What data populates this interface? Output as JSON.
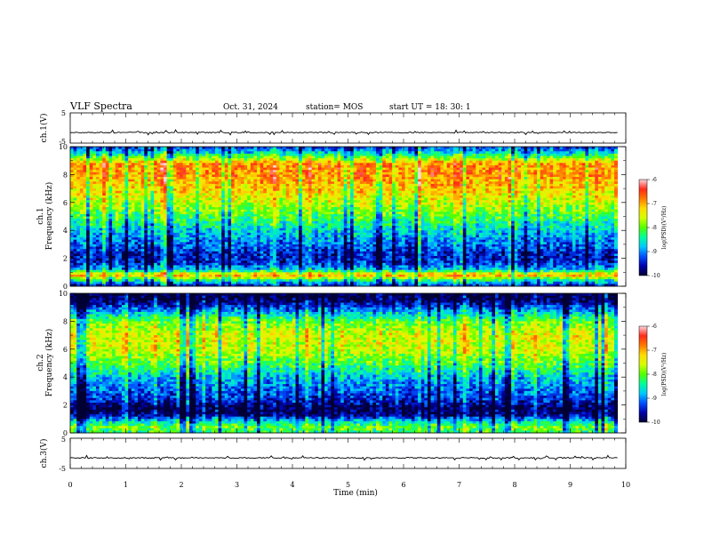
{
  "header": {
    "title": "VLF Spectra",
    "date": "Oct. 31, 2024",
    "station": "station= MOS",
    "start_ut": "start  UT =   18: 30: 1"
  },
  "chart_data": [
    {
      "type": "line",
      "panel": "ch1-waveform",
      "ylabel": "ch.1(V)",
      "yticks": [
        {
          "v": 5,
          "label": "5"
        },
        {
          "v": -5,
          "label": "-5"
        }
      ],
      "ylim": [
        -5,
        5
      ],
      "baseline": -1.5,
      "xlim": [
        0,
        9.85
      ]
    },
    {
      "type": "heatmap",
      "panel": "ch1-spectrogram",
      "ylabel_line1": "ch.1",
      "ylabel_line2": "Frequency (kHz)",
      "ylim": [
        0,
        10
      ],
      "yticks": [
        {
          "v": 0,
          "label": "0"
        },
        {
          "v": 2,
          "label": "2"
        },
        {
          "v": 4,
          "label": "4"
        },
        {
          "v": 6,
          "label": "6"
        },
        {
          "v": 8,
          "label": "8"
        },
        {
          "v": 10,
          "label": "10"
        }
      ],
      "xlim": [
        0,
        9.85
      ],
      "colorbar": {
        "label": "log(PSD)(V²/Hz)",
        "range": [
          -10,
          -6
        ],
        "ticks": [
          {
            "v": -6,
            "label": "-6"
          },
          {
            "v": -7,
            "label": "-7"
          },
          {
            "v": -8,
            "label": "-8"
          },
          {
            "v": -9,
            "label": "-9"
          },
          {
            "v": -10,
            "label": "-10"
          }
        ],
        "colormap": [
          "#000033",
          "#0000aa",
          "#0050ff",
          "#00c8ff",
          "#00ff9c",
          "#52ff00",
          "#d4ff00",
          "#ffdc00",
          "#ff7a00",
          "#ff2a1a",
          "#ffd6dd"
        ]
      },
      "profile": [
        {
          "f": 0.0,
          "v": -9.5
        },
        {
          "f": 0.4,
          "v": -8.5
        },
        {
          "f": 0.8,
          "v": -6.9
        },
        {
          "f": 1.2,
          "v": -8.8
        },
        {
          "f": 1.7,
          "v": -9.4
        },
        {
          "f": 2.3,
          "v": -9.5
        },
        {
          "f": 3.0,
          "v": -9.1
        },
        {
          "f": 4.0,
          "v": -8.7
        },
        {
          "f": 5.0,
          "v": -8.1
        },
        {
          "f": 6.0,
          "v": -7.6
        },
        {
          "f": 7.0,
          "v": -7.2
        },
        {
          "f": 8.0,
          "v": -6.9
        },
        {
          "f": 8.8,
          "v": -6.9
        },
        {
          "f": 9.3,
          "v": -8.1
        },
        {
          "f": 9.7,
          "v": -8.9
        },
        {
          "f": 10.0,
          "v": -9.3
        }
      ]
    },
    {
      "type": "heatmap",
      "panel": "ch2-spectrogram",
      "ylabel_line1": "ch.2",
      "ylabel_line2": "Frequency (kHz)",
      "ylim": [
        0,
        10
      ],
      "yticks": [
        {
          "v": 0,
          "label": "0"
        },
        {
          "v": 2,
          "label": "2"
        },
        {
          "v": 4,
          "label": "4"
        },
        {
          "v": 6,
          "label": "6"
        },
        {
          "v": 8,
          "label": "8"
        },
        {
          "v": 10,
          "label": "10"
        }
      ],
      "xlim": [
        0,
        9.85
      ],
      "colorbar": {
        "label": "log(PSD)(V²/Hz)",
        "range": [
          -10,
          -6
        ],
        "ticks": [
          {
            "v": -6,
            "label": "-6"
          },
          {
            "v": -7,
            "label": "-7"
          },
          {
            "v": -8,
            "label": "-8"
          },
          {
            "v": -9,
            "label": "-9"
          },
          {
            "v": -10,
            "label": "-10"
          }
        ],
        "colormap": [
          "#000033",
          "#0000aa",
          "#0050ff",
          "#00c8ff",
          "#00ff9c",
          "#52ff00",
          "#d4ff00",
          "#ffdc00",
          "#ff7a00",
          "#ff2a1a",
          "#ffd6dd"
        ]
      },
      "profile": [
        {
          "f": 0.0,
          "v": -8.3
        },
        {
          "f": 0.4,
          "v": -8.0
        },
        {
          "f": 0.8,
          "v": -8.6
        },
        {
          "f": 1.3,
          "v": -9.8
        },
        {
          "f": 1.8,
          "v": -9.9
        },
        {
          "f": 2.4,
          "v": -9.4
        },
        {
          "f": 3.0,
          "v": -9.2
        },
        {
          "f": 4.0,
          "v": -8.8
        },
        {
          "f": 5.0,
          "v": -8.1
        },
        {
          "f": 6.0,
          "v": -7.6
        },
        {
          "f": 7.0,
          "v": -7.5
        },
        {
          "f": 8.0,
          "v": -8.0
        },
        {
          "f": 9.0,
          "v": -9.3
        },
        {
          "f": 9.5,
          "v": -9.9
        },
        {
          "f": 10.0,
          "v": -10.0
        }
      ]
    },
    {
      "type": "line",
      "panel": "ch3-waveform",
      "ylabel": "ch.3(V)",
      "yticks": [
        {
          "v": 5,
          "label": "5"
        },
        {
          "v": -5,
          "label": "-5"
        }
      ],
      "ylim": [
        -5,
        5
      ],
      "baseline": -1.5,
      "xlim": [
        0,
        9.85
      ],
      "xlabel": "Time  (min)",
      "xlim_axis": [
        0,
        10
      ],
      "xticks": [
        {
          "v": 0,
          "label": "0"
        },
        {
          "v": 1,
          "label": "1"
        },
        {
          "v": 2,
          "label": "2"
        },
        {
          "v": 3,
          "label": "3"
        },
        {
          "v": 4,
          "label": "4"
        },
        {
          "v": 5,
          "label": "5"
        },
        {
          "v": 6,
          "label": "6"
        },
        {
          "v": 7,
          "label": "7"
        },
        {
          "v": 8,
          "label": "8"
        },
        {
          "v": 9,
          "label": "9"
        },
        {
          "v": 10,
          "label": "10"
        }
      ]
    }
  ]
}
